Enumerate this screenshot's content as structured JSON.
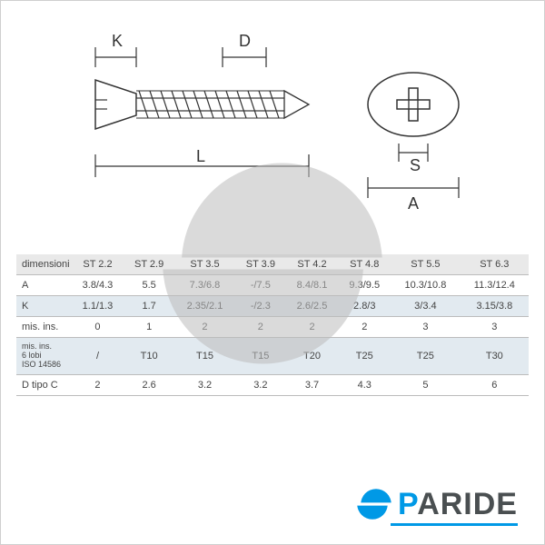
{
  "diagram": {
    "labels": {
      "K": "K",
      "D": "D",
      "L": "L",
      "S": "S",
      "A": "A"
    },
    "stroke": "#333333",
    "fill_light": "#ffffff",
    "tick_len": 8
  },
  "watermark": {
    "color": "#bcbcbc"
  },
  "brand": {
    "text": "PARIDE",
    "text_color": "#4a4f51",
    "accent_color": "#0099e6",
    "stripe_color": "#0099e6"
  },
  "table": {
    "header_bg": "#e9e9e9",
    "alt_bg": "#e2eaf0",
    "row_border": "#bcbcbc",
    "text_color": "#444",
    "columns": [
      "ST 2.2",
      "ST 2.9",
      "ST 3.5",
      "ST 3.9",
      "ST 4.2",
      "ST 4.8",
      "ST 5.5",
      "ST 6.3"
    ],
    "rows": [
      {
        "label": "dimensioni",
        "cells": [
          "ST 2.2",
          "ST 2.9",
          "ST 3.5",
          "ST 3.9",
          "ST 4.2",
          "ST 4.8",
          "ST 5.5",
          "ST 6.3"
        ],
        "header": true
      },
      {
        "label": "A",
        "cells": [
          "3.8/4.3",
          "5.5",
          "7.3/6.8",
          "-/7.5",
          "8.4/8.1",
          "9.3/9.5",
          "10.3/10.8",
          "11.3/12.4"
        ]
      },
      {
        "label": "K",
        "cells": [
          "1.1/1.3",
          "1.7",
          "2.35/2.1",
          "-/2.3",
          "2.6/2.5",
          "2.8/3",
          "3/3.4",
          "3.15/3.8"
        ]
      },
      {
        "label": "mis. ins.",
        "cells": [
          "0",
          "1",
          "2",
          "2",
          "2",
          "2",
          "3",
          "3"
        ]
      },
      {
        "label": "mis. ins.\n6 lobi\nISO 14586",
        "cells": [
          "/",
          "T10",
          "T15",
          "T15",
          "T20",
          "T25",
          "T25",
          "T30"
        ],
        "small": true
      },
      {
        "label": "D tipo C",
        "cells": [
          "2",
          "2.6",
          "3.2",
          "3.2",
          "3.7",
          "4.3",
          "5",
          "6"
        ]
      }
    ]
  }
}
